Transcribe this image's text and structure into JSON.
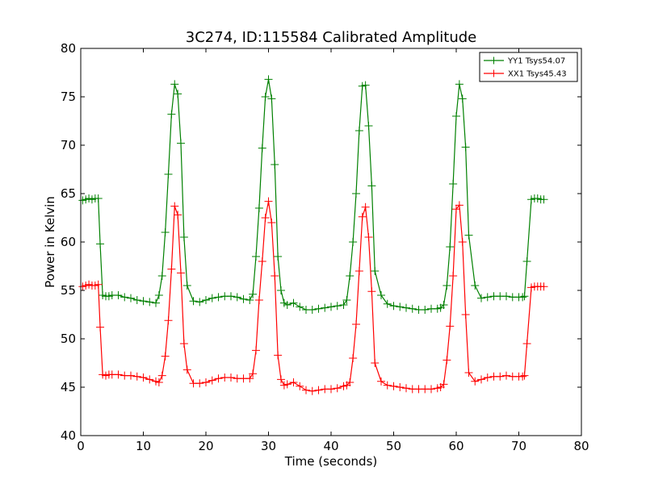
{
  "chart_data": {
    "type": "line",
    "title": "3C274, ID:115584 Calibrated Amplitude",
    "xlabel": "Time (seconds)",
    "ylabel": "Power in Kelvin",
    "xlim": [
      0,
      80
    ],
    "ylim": [
      40,
      80
    ],
    "xticks": [
      0,
      10,
      20,
      30,
      40,
      50,
      60,
      70,
      80
    ],
    "yticks": [
      40,
      45,
      50,
      55,
      60,
      65,
      70,
      75,
      80
    ],
    "grid": false,
    "legend_position": "top-right",
    "marker": "plus",
    "series": [
      {
        "name": "YY1 Tsys54.07",
        "color": "#008000",
        "x": [
          0.3,
          0.8,
          1.3,
          1.8,
          2.3,
          2.8,
          3.1,
          3.5,
          4.0,
          4.5,
          5.0,
          6.0,
          7.0,
          8.0,
          9.0,
          10.0,
          11.0,
          12.0,
          12.5,
          13.0,
          13.5,
          14.0,
          14.5,
          15.0,
          15.5,
          16.0,
          16.5,
          17.0,
          18.0,
          19.0,
          20.0,
          21.0,
          22.0,
          23.0,
          24.0,
          25.0,
          26.0,
          27.0,
          27.5,
          28.0,
          28.5,
          29.0,
          29.5,
          30.0,
          30.5,
          31.0,
          31.5,
          32.0,
          32.5,
          33.0,
          34.0,
          35.0,
          36.0,
          37.0,
          38.0,
          39.0,
          40.0,
          41.0,
          42.0,
          42.5,
          43.0,
          43.5,
          44.0,
          44.5,
          45.0,
          45.5,
          46.0,
          46.5,
          47.0,
          48.0,
          49.0,
          50.0,
          51.0,
          52.0,
          53.0,
          54.0,
          55.0,
          56.0,
          57.0,
          57.5,
          58.0,
          58.5,
          59.0,
          59.5,
          60.0,
          60.5,
          61.0,
          61.5,
          62.0,
          63.0,
          64.0,
          65.0,
          66.0,
          67.0,
          68.0,
          69.0,
          70.0,
          70.6,
          70.9,
          71.3,
          72.0,
          72.5,
          73.0,
          73.5,
          74.0
        ],
        "values": [
          64.3,
          64.4,
          64.5,
          64.4,
          64.5,
          64.5,
          59.8,
          54.5,
          54.4,
          54.4,
          54.5,
          54.5,
          54.3,
          54.2,
          54.0,
          53.9,
          53.8,
          53.7,
          54.5,
          56.5,
          61.0,
          67.0,
          73.2,
          76.3,
          75.3,
          70.2,
          60.5,
          55.5,
          53.9,
          53.8,
          54.0,
          54.2,
          54.3,
          54.4,
          54.4,
          54.3,
          54.1,
          54.0,
          54.6,
          58.5,
          63.5,
          69.7,
          75.0,
          76.8,
          74.8,
          68.0,
          58.5,
          55.0,
          53.7,
          53.5,
          53.7,
          53.3,
          53.0,
          53.0,
          53.1,
          53.2,
          53.3,
          53.4,
          53.5,
          54.0,
          56.5,
          60.0,
          65.0,
          71.5,
          76.1,
          76.2,
          72.0,
          65.8,
          57.0,
          54.5,
          53.6,
          53.4,
          53.3,
          53.2,
          53.1,
          53.0,
          53.0,
          53.1,
          53.1,
          53.2,
          53.5,
          55.5,
          59.5,
          66.0,
          73.0,
          76.3,
          74.8,
          69.8,
          60.7,
          55.5,
          54.2,
          54.3,
          54.4,
          54.4,
          54.4,
          54.3,
          54.3,
          54.3,
          54.4,
          58.0,
          64.4,
          64.5,
          64.5,
          64.4,
          64.4
        ]
      },
      {
        "name": "XX1 Tsys45.43",
        "color": "#ff0000",
        "x": [
          0.3,
          0.8,
          1.3,
          1.8,
          2.3,
          2.8,
          3.1,
          3.5,
          4.0,
          4.5,
          5.0,
          6.0,
          7.0,
          8.0,
          9.0,
          10.0,
          11.0,
          12.0,
          12.5,
          13.0,
          13.5,
          14.0,
          14.5,
          15.0,
          15.5,
          16.0,
          16.5,
          17.0,
          18.0,
          19.0,
          20.0,
          21.0,
          22.0,
          23.0,
          24.0,
          25.0,
          26.0,
          27.0,
          27.5,
          28.0,
          28.5,
          29.0,
          29.5,
          30.0,
          30.5,
          31.0,
          31.5,
          32.0,
          32.5,
          33.0,
          34.0,
          35.0,
          36.0,
          37.0,
          38.0,
          39.0,
          40.0,
          41.0,
          42.0,
          42.5,
          43.0,
          43.5,
          44.0,
          44.5,
          45.0,
          45.5,
          46.0,
          46.5,
          47.0,
          48.0,
          49.0,
          50.0,
          51.0,
          52.0,
          53.0,
          54.0,
          55.0,
          56.0,
          57.0,
          57.5,
          58.0,
          58.5,
          59.0,
          59.5,
          60.0,
          60.5,
          61.0,
          61.5,
          62.0,
          63.0,
          64.0,
          65.0,
          66.0,
          67.0,
          68.0,
          69.0,
          70.0,
          70.6,
          70.9,
          71.3,
          72.0,
          72.5,
          73.0,
          73.5,
          74.0
        ],
        "values": [
          55.4,
          55.5,
          55.6,
          55.5,
          55.5,
          55.6,
          51.2,
          46.3,
          46.2,
          46.3,
          46.3,
          46.3,
          46.2,
          46.2,
          46.1,
          46.0,
          45.8,
          45.6,
          45.5,
          46.2,
          48.2,
          51.9,
          57.2,
          63.7,
          62.8,
          56.8,
          49.5,
          46.8,
          45.4,
          45.4,
          45.5,
          45.7,
          45.9,
          46.0,
          46.0,
          45.9,
          45.9,
          45.9,
          46.4,
          48.8,
          54.0,
          58.0,
          62.5,
          64.2,
          62.0,
          56.5,
          48.3,
          45.8,
          45.2,
          45.3,
          45.5,
          45.1,
          44.7,
          44.6,
          44.7,
          44.8,
          44.8,
          44.9,
          45.1,
          45.2,
          45.5,
          48.0,
          51.5,
          57.0,
          62.6,
          63.6,
          60.5,
          54.9,
          47.5,
          45.6,
          45.2,
          45.1,
          45.0,
          44.9,
          44.8,
          44.8,
          44.8,
          44.8,
          44.9,
          45.0,
          45.3,
          47.8,
          51.3,
          56.5,
          63.4,
          63.8,
          60.0,
          52.5,
          46.5,
          45.6,
          45.8,
          46.0,
          46.1,
          46.1,
          46.2,
          46.1,
          46.1,
          46.1,
          46.2,
          49.5,
          55.3,
          55.4,
          55.4,
          55.4,
          55.4
        ]
      }
    ]
  }
}
